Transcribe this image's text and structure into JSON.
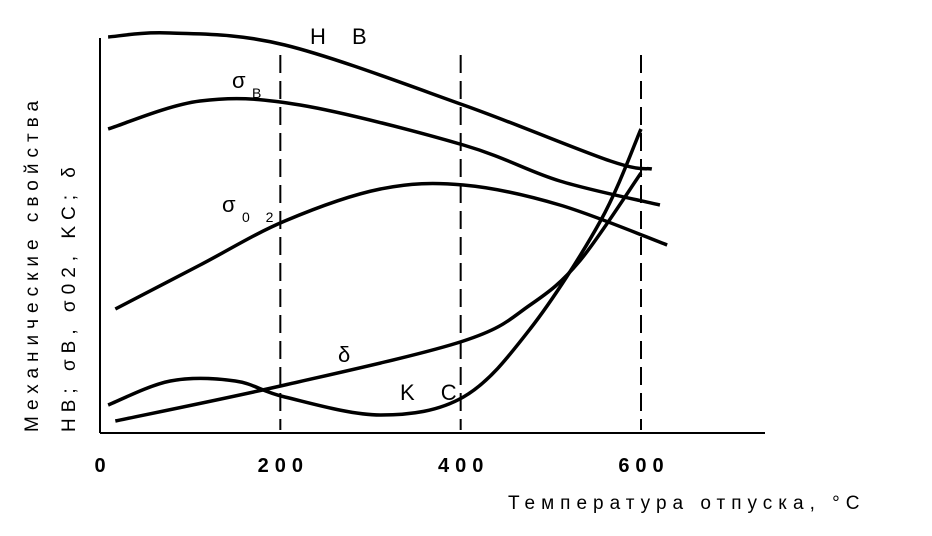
{
  "chart_data": {
    "type": "line",
    "x_label": "Температура отпуска, °C",
    "y_label": [
      "Механические свойства",
      "HB; σB, σ02, KC; δ"
    ],
    "xlim": [
      0,
      735
    ],
    "ylim": [
      0,
      105
    ],
    "xticks": [
      0,
      200,
      400,
      600
    ],
    "dashed_lines": [
      200,
      400,
      600
    ],
    "color": "#000000",
    "series": [
      {
        "name": "H B",
        "x": [
          9,
          78,
          205,
          403,
          566,
          612
        ],
        "values": [
          99,
          100,
          97,
          82,
          68,
          66
        ]
      },
      {
        "name": "σ",
        "subscript": "B",
        "x": [
          9,
          111,
          222,
          403,
          510,
          621
        ],
        "values": [
          76,
          83,
          82,
          72,
          63,
          57
        ]
      },
      {
        "name": "σ",
        "subscript": "0 2",
        "x": [
          17,
          111,
          205,
          311,
          403,
          510,
          629
        ],
        "values": [
          31,
          42,
          53,
          61,
          62,
          57,
          47
        ]
      },
      {
        "name": "δ",
        "x": [
          17,
          205,
          403,
          477,
          532,
          600
        ],
        "values": [
          3,
          12,
          23,
          32,
          43,
          65
        ]
      },
      {
        "name": "K C",
        "x": [
          9,
          78,
          150,
          205,
          311,
          403,
          477,
          555,
          600
        ],
        "values": [
          7,
          13,
          13,
          9,
          4.5,
          9,
          26,
          53,
          76
        ]
      }
    ]
  }
}
